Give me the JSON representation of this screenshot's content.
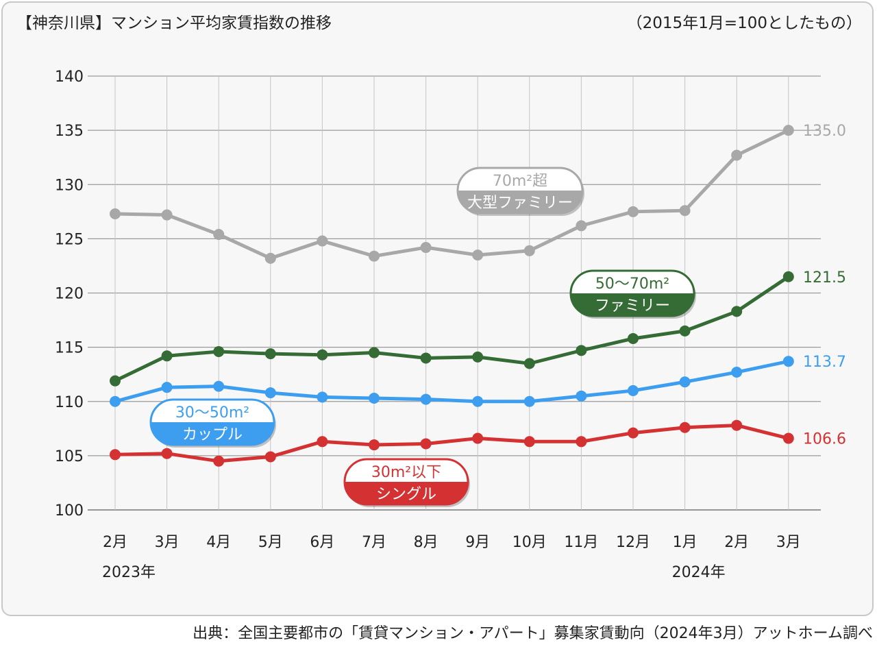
{
  "chart_data": {
    "type": "line",
    "title": "【神奈川県】マンション平均家賃指数の推移",
    "note": "（2015年1月=100としたもの）",
    "source": "出典：全国主要都市の「賃貸マンション・アパート」募集家賃動向（2024年3月）アットホーム調べ",
    "categories": [
      "2月",
      "3月",
      "4月",
      "5月",
      "6月",
      "7月",
      "8月",
      "9月",
      "10月",
      "11月",
      "12月",
      "1月",
      "2月",
      "3月"
    ],
    "year_labels": [
      {
        "label": "2023年",
        "category_index": 0
      },
      {
        "label": "2024年",
        "category_index": 11
      }
    ],
    "ylim": [
      100,
      140
    ],
    "yticks": [
      "100",
      "105",
      "110",
      "115",
      "120",
      "125",
      "130",
      "135",
      "140"
    ],
    "grid": true,
    "series": [
      {
        "id": "large-family",
        "label_line1": "70m²超",
        "label_line2": "大型ファミリー",
        "color": "#a8a8a8",
        "values": [
          127.3,
          127.2,
          125.4,
          123.2,
          124.8,
          123.4,
          124.2,
          123.5,
          123.9,
          126.2,
          127.5,
          127.6,
          132.7,
          135.0
        ],
        "end_label": "135.0"
      },
      {
        "id": "family",
        "label_line1": "50〜70m²",
        "label_line2": "ファミリー",
        "color": "#356b34",
        "values": [
          111.9,
          114.2,
          114.6,
          114.4,
          114.3,
          114.5,
          114.0,
          114.1,
          113.5,
          114.7,
          115.8,
          116.5,
          118.3,
          121.5
        ],
        "end_label": "121.5"
      },
      {
        "id": "couple",
        "label_line1": "30〜50m²",
        "label_line2": "カップル",
        "color": "#3d9ef0",
        "values": [
          110.0,
          111.3,
          111.4,
          110.8,
          110.4,
          110.3,
          110.2,
          110.0,
          110.0,
          110.5,
          111.0,
          111.8,
          112.7,
          113.7
        ],
        "end_label": "113.7"
      },
      {
        "id": "single",
        "label_line1": "30m²以下",
        "label_line2": "シングル",
        "color": "#d43232",
        "values": [
          105.1,
          105.2,
          104.5,
          104.9,
          106.3,
          106.0,
          106.1,
          106.6,
          106.3,
          106.3,
          107.1,
          107.6,
          107.8,
          106.6
        ],
        "end_label": "106.6"
      }
    ]
  }
}
